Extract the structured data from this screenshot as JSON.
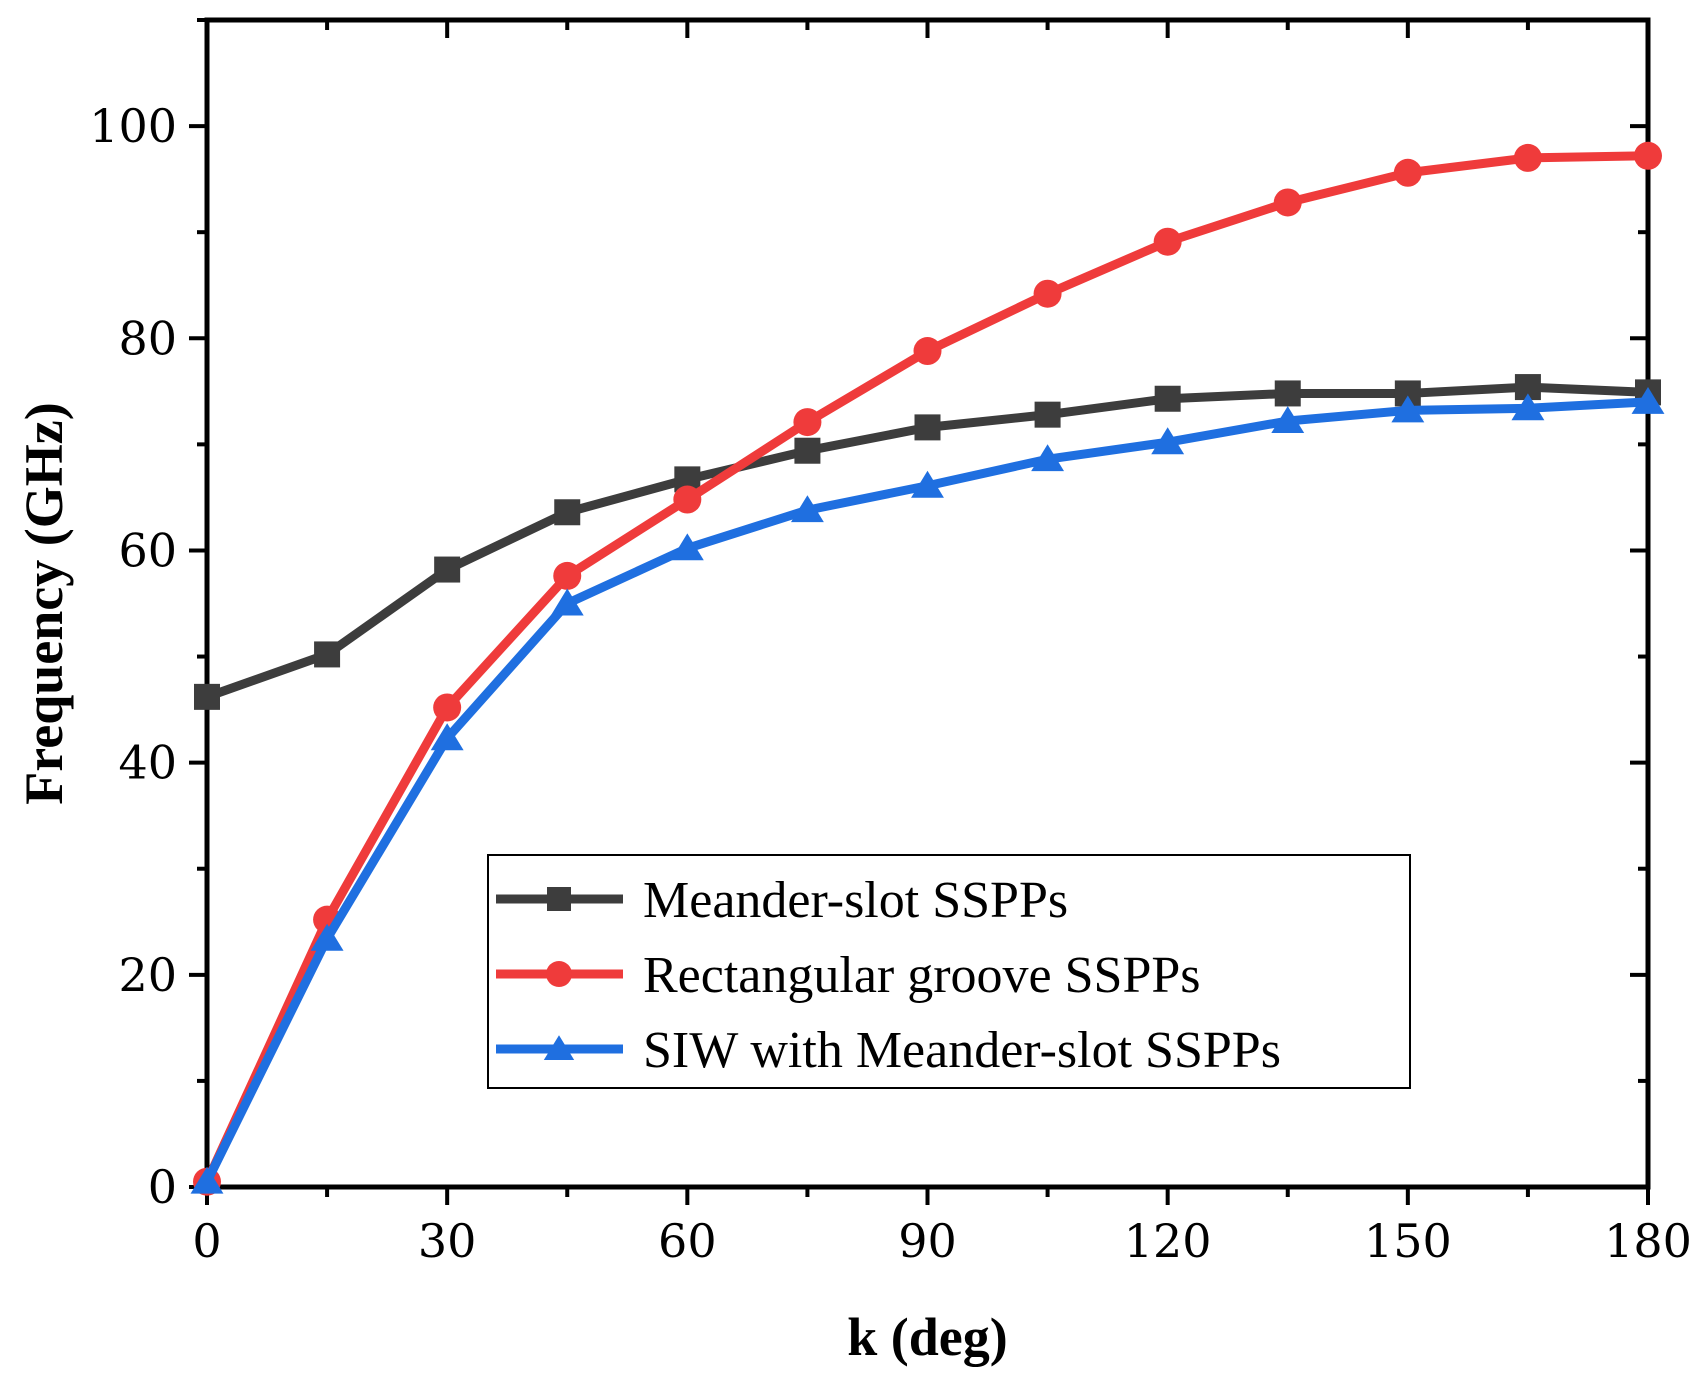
{
  "chart_data": {
    "type": "line",
    "title": "",
    "xlabel": "k (deg)",
    "ylabel": "Frequency (GHz)",
    "xlim": [
      0,
      180
    ],
    "ylim": [
      0,
      110
    ],
    "xticks": [
      0,
      30,
      60,
      90,
      120,
      150,
      180
    ],
    "yticks": [
      0,
      20,
      40,
      60,
      80,
      100
    ],
    "grid": false,
    "legend_position": "bottom-right",
    "x": [
      0,
      15,
      30,
      45,
      60,
      75,
      90,
      105,
      120,
      135,
      150,
      165,
      180
    ],
    "series": [
      {
        "name": "Meander-slot SSPPs",
        "color": "#3d3d3d",
        "marker": "square",
        "values": [
          46.2,
          50.2,
          58.2,
          63.6,
          66.7,
          69.4,
          71.6,
          72.8,
          74.3,
          74.8,
          74.8,
          75.4,
          74.9
        ]
      },
      {
        "name": "Rectangular groove SSPPs",
        "color": "#ef3b3b",
        "marker": "circle",
        "values": [
          0.5,
          25.2,
          45.2,
          57.6,
          64.8,
          72.1,
          78.8,
          84.2,
          89.1,
          92.8,
          95.6,
          97.0,
          97.2
        ]
      },
      {
        "name": "SIW  with Meander-slot SSPPs",
        "color": "#1f6fe0",
        "marker": "triangle",
        "values": [
          0.5,
          23.4,
          42.3,
          55.0,
          60.2,
          63.8,
          66.1,
          68.6,
          70.2,
          72.2,
          73.2,
          73.4,
          74.0
        ]
      }
    ]
  }
}
